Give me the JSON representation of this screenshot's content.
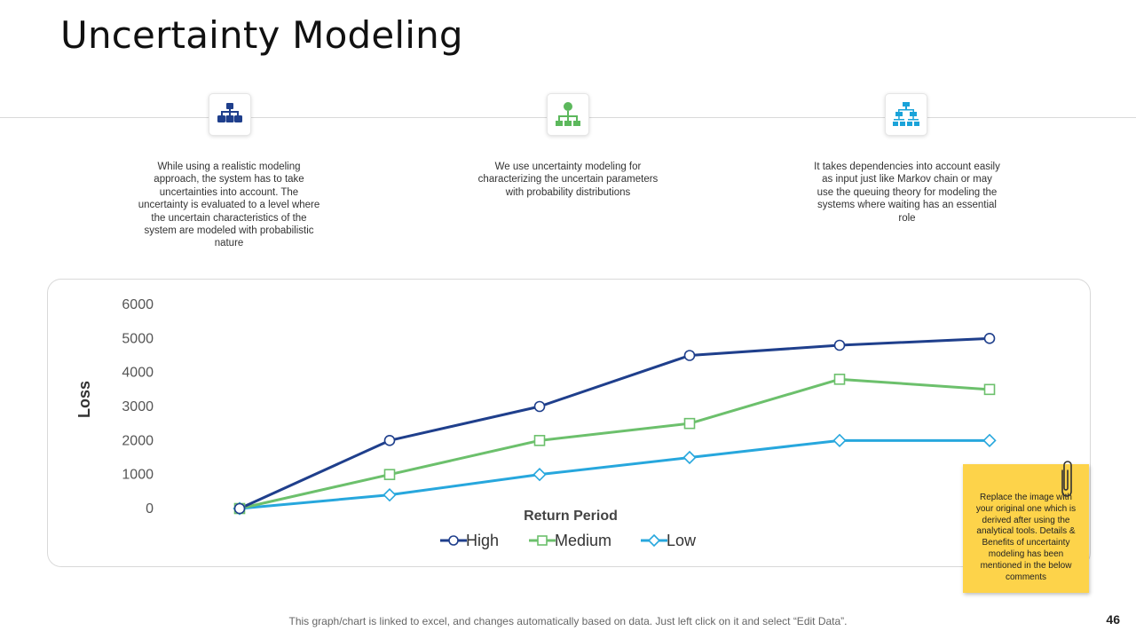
{
  "slide": {
    "title": "Uncertainty Modeling",
    "footer": "This graph/chart is linked to excel, and changes automatically based on data. Just left click on it and select “Edit Data”.",
    "page_number": "46"
  },
  "features": [
    {
      "icon": "org-chart-icon",
      "color": "#1f3f8c",
      "text": "While using a realistic modeling approach, the system has to take uncertainties into account. The uncertainty is evaluated to  a level where the uncertain characteristics of the system are modeled with probabilistic nature"
    },
    {
      "icon": "hierarchy-icon",
      "color": "#5cb85c",
      "text": "We use uncertainty modeling for characterizing the uncertain parameters with probability distributions"
    },
    {
      "icon": "sitemap-icon",
      "color": "#1aa3d9",
      "text": "It takes dependencies into account easily as input just like Markov chain or may use the queuing theory for modeling the systems where waiting has an essential role"
    }
  ],
  "sticky_note": {
    "text": "Replace the image with your original one which is derived after using the analytical tools. Details & Benefits of uncertainty modeling has been mentioned in the below comments"
  },
  "chart_data": {
    "type": "line",
    "title": "",
    "xlabel": "Return Period",
    "ylabel": "Loss",
    "ylim": [
      0,
      6000
    ],
    "y_ticks": [
      0,
      1000,
      2000,
      3000,
      4000,
      5000,
      6000
    ],
    "x": [
      1,
      2,
      3,
      4,
      5,
      6
    ],
    "series": [
      {
        "name": "High",
        "values": [
          0,
          2000,
          3000,
          4500,
          4800,
          5000
        ],
        "color": "#1f3f8c",
        "marker": "circle"
      },
      {
        "name": "Medium",
        "values": [
          0,
          1000,
          2000,
          2500,
          3800,
          3500
        ],
        "color": "#6cc06c",
        "marker": "square"
      },
      {
        "name": "Low",
        "values": [
          0,
          400,
          1000,
          1500,
          2000,
          2000
        ],
        "color": "#27a7dd",
        "marker": "diamond"
      }
    ],
    "legend": "bottom",
    "grid": false
  }
}
